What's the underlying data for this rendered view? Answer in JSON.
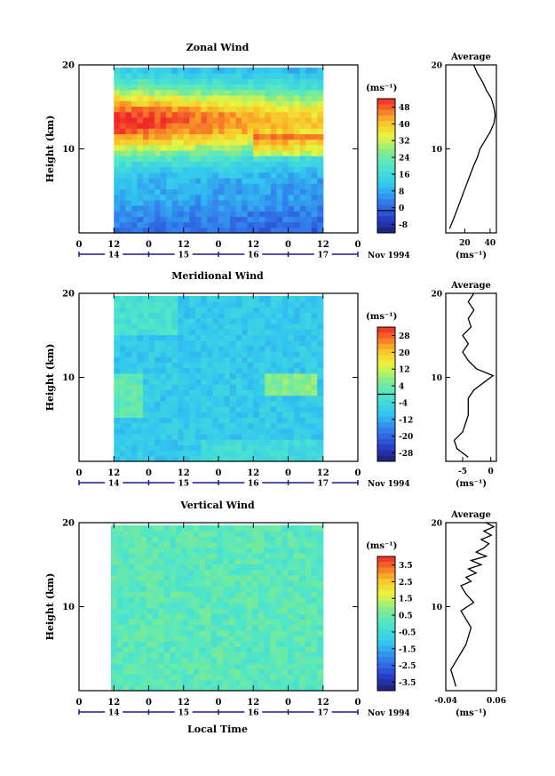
{
  "chart_data": [
    {
      "type": "heatmap",
      "title": "Zonal Wind",
      "ylabel": "Height (km)",
      "xlabel": "",
      "y_ticks": [
        "20",
        "10"
      ],
      "x_ticks": [
        "0",
        "12",
        "0",
        "12",
        "0",
        "12",
        "0",
        "12",
        "0"
      ],
      "date_ticks": [
        "14",
        "15",
        "16",
        "17"
      ],
      "date_label": "Nov 1994",
      "ylim": [
        0,
        20
      ],
      "data_start_hour": 12,
      "data_end_hour": 84,
      "colorbar": {
        "unit": "(ms⁻¹)",
        "labels": [
          "48",
          "40",
          "32",
          "24",
          "16",
          "8",
          "0",
          "-8"
        ],
        "min": -10,
        "max": 50,
        "zero_line": 0
      },
      "field": {
        "kind": "zonal",
        "peak_height": 14,
        "peak_value": 48,
        "surface_value": 2
      },
      "profile": {
        "title": "Average",
        "unit": "(ms⁻¹)",
        "x_ticks": [
          "20",
          "40"
        ],
        "xlim": [
          5,
          45
        ],
        "heights": [
          0.5,
          2,
          4,
          6,
          8,
          9,
          10,
          11,
          12,
          13,
          14,
          15,
          16,
          17,
          18,
          19,
          20
        ],
        "values": [
          8,
          12,
          17,
          22,
          27,
          30,
          32,
          36,
          40,
          43,
          44,
          43,
          41,
          37,
          34,
          30,
          27
        ]
      }
    },
    {
      "type": "heatmap",
      "title": "Meridional Wind",
      "ylabel": "Height (km)",
      "xlabel": "",
      "y_ticks": [
        "20",
        "10"
      ],
      "x_ticks": [
        "0",
        "12",
        "0",
        "12",
        "0",
        "12",
        "0",
        "12",
        "0"
      ],
      "date_ticks": [
        "14",
        "15",
        "16",
        "17"
      ],
      "date_label": "Nov 1994",
      "ylim": [
        0,
        20
      ],
      "data_start_hour": 12,
      "data_end_hour": 84,
      "colorbar": {
        "unit": "(ms⁻¹)",
        "labels": [
          "28",
          "20",
          "12",
          "4",
          "-4",
          "-12",
          "-20",
          "-28"
        ],
        "min": -32,
        "max": 32,
        "zero_line": 0
      },
      "field": {
        "kind": "meridional",
        "background": -8
      },
      "profile": {
        "title": "Average",
        "unit": "(ms⁻¹)",
        "x_ticks": [
          "-5",
          "0"
        ],
        "xlim": [
          -8,
          1
        ],
        "heights": [
          0.5,
          1.5,
          2.5,
          3.5,
          4.5,
          5.5,
          6.5,
          7.5,
          8.5,
          9.5,
          10.2,
          11,
          12,
          13,
          14,
          15,
          16,
          17,
          18,
          19,
          20
        ],
        "values": [
          -4,
          -6,
          -6.5,
          -5,
          -4.5,
          -4,
          -4,
          -4,
          -3,
          -1,
          0.4,
          -2.5,
          -4,
          -5,
          -4,
          -5,
          -3.5,
          -4,
          -3,
          -4,
          -3
        ]
      }
    },
    {
      "type": "heatmap",
      "title": "Vertical Wind",
      "ylabel": "Height (km)",
      "xlabel": "Local Time",
      "y_ticks": [
        "20",
        "10"
      ],
      "x_ticks": [
        "0",
        "12",
        "0",
        "12",
        "0",
        "12",
        "0",
        "12",
        "0"
      ],
      "date_ticks": [
        "14",
        "15",
        "16",
        "17"
      ],
      "date_label": "Nov 1994",
      "ylim": [
        0,
        20
      ],
      "data_start_hour": 11,
      "data_end_hour": 84,
      "colorbar": {
        "unit": "(ms⁻¹)",
        "labels": [
          "3.5",
          "2.5",
          "1.5",
          "0.5",
          "-0.5",
          "-1.5",
          "-2.5",
          "-3.5"
        ],
        "min": -4,
        "max": 4,
        "zero_line": null
      },
      "field": {
        "kind": "vertical",
        "background": 0.2
      },
      "profile": {
        "title": "Average",
        "unit": "(ms⁻¹)",
        "x_ticks": [
          "-0.04",
          "0.06"
        ],
        "xlim": [
          -0.04,
          0.06
        ],
        "heights": [
          0.5,
          1.5,
          2.5,
          3.5,
          4.5,
          5.5,
          6.5,
          7.5,
          8.5,
          9.5,
          10.5,
          11.5,
          12.5,
          13,
          13.5,
          14,
          14.5,
          15,
          15.5,
          16,
          16.5,
          17,
          17.5,
          18,
          18.5,
          19,
          19.5,
          20
        ],
        "values": [
          -0.02,
          -0.025,
          -0.03,
          -0.02,
          -0.01,
          0.0,
          0.005,
          0.01,
          0.0,
          -0.01,
          0.015,
          0.0,
          -0.01,
          0.01,
          0.0,
          0.02,
          0.005,
          0.03,
          0.01,
          0.04,
          0.02,
          0.035,
          0.045,
          0.03,
          0.05,
          0.035,
          0.055,
          0.04
        ]
      }
    }
  ]
}
